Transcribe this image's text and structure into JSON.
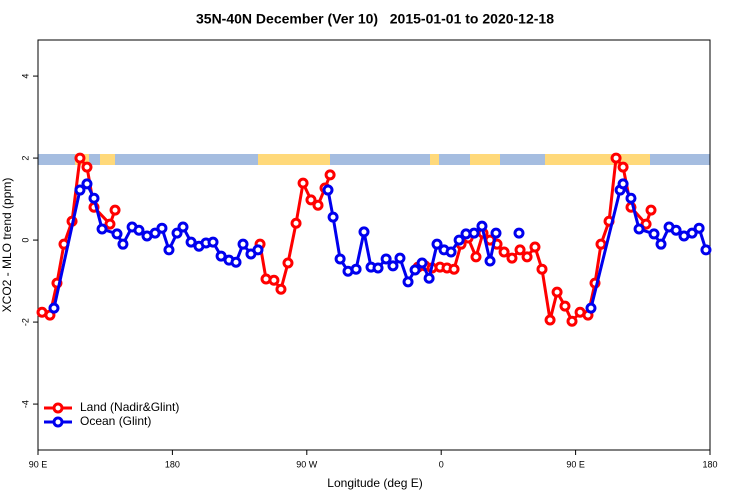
{
  "chart_data": {
    "type": "line",
    "title": "35N-40N December (Ver 10)   2015-01-01 to 2020-12-18",
    "x_label": "Longitude (deg E)",
    "y_label": "XCO2 - MLO trend (ppm)",
    "xlim": [
      90,
      540
    ],
    "ylim": [
      -5.12,
      4.88
    ],
    "xticks": [
      {
        "value": 90,
        "label": "90 E"
      },
      {
        "value": 180,
        "label": "180"
      },
      {
        "value": 270,
        "label": "90 W"
      },
      {
        "value": 360,
        "label": "0"
      },
      {
        "value": 450,
        "label": "90 E"
      },
      {
        "value": 540,
        "label": "180"
      }
    ],
    "yticks": [
      -4,
      -2,
      0,
      2,
      4
    ],
    "legend": "bottom-left",
    "series": [
      {
        "name": "Land (Nadir&Glint)",
        "color": "#ff0000",
        "x": [
          92.7,
          98.0,
          102.7,
          107.4,
          112.8,
          118.1,
          122.8,
          127.5,
          138.2,
          141.6,
          null,
          238.7,
          242.7,
          248.0,
          252.7,
          257.4,
          262.8,
          267.5,
          272.8,
          277.5,
          282.2,
          285.6,
          null,
          344.5,
          349.2,
          353.9,
          359.2,
          363.9,
          368.6,
          373.3,
          378.0,
          383.3,
          388.0,
          392.7,
          397.4,
          402.1,
          407.4,
          412.8,
          417.5,
          422.8,
          427.5,
          432.9,
          437.6,
          442.9,
          447.6,
          453.0,
          458.3,
          463.0,
          467.0,
          472.4,
          477.1,
          481.8,
          487.1,
          497.2,
          500.5
        ],
        "values": [
          -1.76,
          -1.83,
          -1.05,
          -0.1,
          0.46,
          2.0,
          1.78,
          0.8,
          0.39,
          0.73,
          null,
          -0.1,
          -0.95,
          -0.98,
          -1.2,
          -0.56,
          0.41,
          1.39,
          0.98,
          0.85,
          1.27,
          1.59,
          null,
          -0.66,
          -0.63,
          -0.68,
          -0.66,
          -0.68,
          -0.71,
          -0.1,
          0.05,
          -0.41,
          0.17,
          0.0,
          -0.1,
          -0.29,
          -0.44,
          -0.24,
          -0.41,
          -0.17,
          -0.71,
          -1.95,
          -1.27,
          -1.61,
          -1.98,
          -1.76,
          -1.83,
          -1.05,
          -0.1,
          0.46,
          2.0,
          1.78,
          0.8,
          0.39,
          0.73
        ]
      },
      {
        "name": "Ocean (Glint)",
        "color": "#0000ee",
        "x": [
          100.7,
          118.1,
          122.8,
          127.5,
          132.9,
          142.9,
          146.9,
          153.0,
          157.6,
          163.0,
          168.4,
          173.0,
          177.7,
          183.1,
          187.1,
          192.5,
          197.8,
          202.5,
          207.2,
          212.6,
          217.9,
          222.6,
          227.3,
          232.6,
          237.3,
          null,
          284.2,
          287.6,
          292.3,
          297.6,
          303.0,
          308.3,
          313.0,
          317.7,
          323.1,
          327.7,
          332.4,
          337.8,
          342.5,
          347.2,
          351.9,
          357.2,
          361.9,
          366.6,
          372.0,
          376.6,
          382.0,
          387.3,
          392.7,
          396.7,
          null,
          412.1,
          null,
          460.3,
          479.8,
          481.8,
          487.1,
          492.5,
          502.5,
          507.2,
          512.6,
          517.3,
          522.6,
          528.0,
          532.7,
          537.3
        ],
        "values": [
          -1.66,
          1.22,
          1.37,
          1.02,
          0.27,
          0.15,
          -0.1,
          0.32,
          0.24,
          0.1,
          0.17,
          0.29,
          -0.24,
          0.17,
          0.32,
          -0.05,
          -0.15,
          -0.07,
          -0.05,
          -0.39,
          -0.49,
          -0.54,
          -0.1,
          -0.34,
          -0.24,
          null,
          1.22,
          0.56,
          -0.46,
          -0.76,
          -0.71,
          0.2,
          -0.66,
          -0.68,
          -0.46,
          -0.63,
          -0.44,
          -1.02,
          -0.73,
          -0.56,
          -0.93,
          -0.1,
          -0.24,
          -0.29,
          0.0,
          0.15,
          0.17,
          0.34,
          -0.51,
          0.17,
          null,
          0.17,
          null,
          -1.66,
          1.22,
          1.37,
          1.02,
          0.27,
          0.15,
          -0.1,
          0.32,
          0.24,
          0.1,
          0.17,
          0.29,
          -0.24
        ]
      }
    ]
  }
}
